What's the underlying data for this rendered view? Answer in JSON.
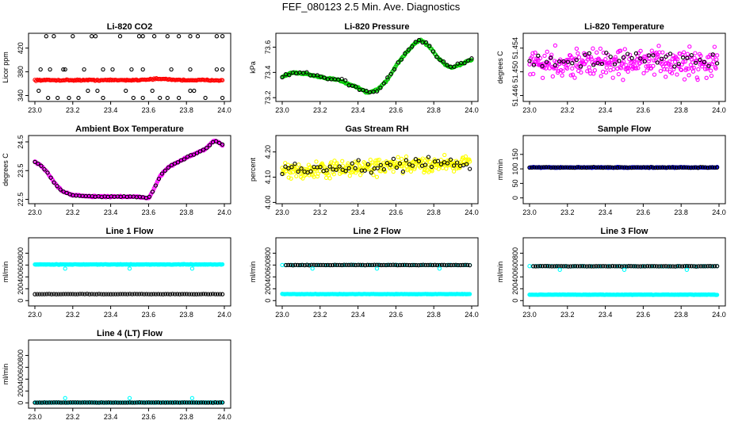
{
  "page_title": "FEF_080123  2.5 Min. Ave. Diagnostics",
  "colors": {
    "black": "#000000",
    "red": "#ff0000",
    "green": "#00cc00",
    "magenta": "#ff00ff",
    "yellow": "#ffff00",
    "blue": "#0000ff",
    "cyan": "#00ffff"
  },
  "chart_data": [
    {
      "id": "co2",
      "type": "scatter",
      "title": "Li-820 CO2",
      "ylabel": "Licor ppm",
      "xlim": [
        23.0,
        24.0
      ],
      "ylim": [
        330,
        445
      ],
      "xticks": [
        "23.0",
        "23.2",
        "23.4",
        "23.6",
        "23.8",
        "24.0"
      ],
      "yticks": [
        {
          "v": 340,
          "t": "340"
        },
        {
          "v": 380,
          "t": "380"
        },
        {
          "v": 420,
          "t": "420"
        }
      ],
      "series": [
        {
          "name": "co2-band",
          "color": "red",
          "kind": "band",
          "level": 366,
          "noise": 1.5,
          "n": 160,
          "x_from": 23.0,
          "x_to": 23.99,
          "bump_at": 23.65,
          "bump": 2
        },
        {
          "name": "co2-upper",
          "color": "black",
          "kind": "points",
          "x": [
            23.06,
            23.1,
            23.2,
            23.3,
            23.32,
            23.45,
            23.55,
            23.57,
            23.63,
            23.7,
            23.76,
            23.82,
            23.86,
            23.96,
            23.99
          ],
          "y": [
            440,
            440,
            440,
            440,
            440,
            440,
            440,
            440,
            440,
            440,
            440,
            440,
            440,
            440,
            440
          ]
        },
        {
          "name": "co2-mid",
          "color": "black",
          "kind": "points",
          "x": [
            23.03,
            23.08,
            23.15,
            23.16,
            23.26,
            23.36,
            23.41,
            23.51,
            23.57,
            23.72,
            23.82,
            23.96,
            23.99
          ],
          "y": [
            384,
            384,
            384,
            384,
            384,
            384,
            384,
            384,
            384,
            384,
            384,
            384,
            384
          ]
        },
        {
          "name": "co2-lower",
          "color": "black",
          "kind": "points",
          "x": [
            23.02,
            23.07,
            23.12,
            23.18,
            23.23,
            23.28,
            23.33,
            23.36,
            23.48,
            23.52,
            23.57,
            23.62,
            23.66,
            23.7,
            23.76,
            23.82,
            23.84,
            23.9,
            23.99
          ],
          "y": [
            348,
            336,
            336,
            336,
            336,
            348,
            348,
            336,
            348,
            336,
            336,
            348,
            336,
            336,
            336,
            348,
            348,
            336,
            336
          ]
        }
      ]
    },
    {
      "id": "pressure",
      "type": "scatter",
      "title": "Li-820 Pressure",
      "ylabel": "kPa",
      "xlim": [
        23.0,
        24.0
      ],
      "ylim": [
        73.17,
        73.71
      ],
      "xticks": [
        "23.0",
        "23.2",
        "23.4",
        "23.6",
        "23.8",
        "24.0"
      ],
      "yticks": [
        {
          "v": 73.2,
          "t": "73.2"
        },
        {
          "v": 73.4,
          "t": "73.4"
        },
        {
          "v": 73.6,
          "t": "73.6"
        }
      ],
      "series": [
        {
          "name": "pressure-trace",
          "color": "green",
          "kind": "curve",
          "noise": 0.01,
          "n": 180,
          "x_from": 23.0,
          "x_to": 24.0,
          "curve_x": [
            23.0,
            23.05,
            23.12,
            23.2,
            23.3,
            23.4,
            23.45,
            23.5,
            23.55,
            23.6,
            23.65,
            23.7,
            23.73,
            23.78,
            23.82,
            23.87,
            23.9,
            23.95,
            24.0
          ],
          "curve_y": [
            73.36,
            73.4,
            73.39,
            73.36,
            73.34,
            73.28,
            73.24,
            73.26,
            73.33,
            73.45,
            73.55,
            73.63,
            73.66,
            73.6,
            73.52,
            73.45,
            73.44,
            73.47,
            73.5
          ]
        },
        {
          "name": "pressure-avg",
          "color": "black",
          "kind": "curve",
          "noise": 0.02,
          "n": 55,
          "x_from": 23.0,
          "x_to": 24.0,
          "curve_x": [
            23.0,
            23.05,
            23.12,
            23.2,
            23.3,
            23.4,
            23.45,
            23.5,
            23.55,
            23.6,
            23.65,
            23.7,
            23.73,
            23.78,
            23.82,
            23.87,
            23.9,
            23.95,
            24.0
          ],
          "curve_y": [
            73.36,
            73.4,
            73.39,
            73.36,
            73.34,
            73.28,
            73.24,
            73.26,
            73.33,
            73.45,
            73.55,
            73.63,
            73.66,
            73.6,
            73.52,
            73.45,
            73.44,
            73.47,
            73.5
          ]
        }
      ]
    },
    {
      "id": "licor-temp",
      "type": "scatter",
      "title": "Li-820 Temperature",
      "ylabel": "degrees C",
      "xlim": [
        23.0,
        24.0
      ],
      "ylim": [
        51.445,
        51.4565
      ],
      "xticks": [
        "23.0",
        "23.2",
        "23.4",
        "23.6",
        "23.8",
        "24.0"
      ],
      "yticks": [
        {
          "v": 51.446,
          "t": "51.446"
        },
        {
          "v": 51.45,
          "t": "51.450"
        },
        {
          "v": 51.454,
          "t": "51.454"
        }
      ],
      "series": [
        {
          "name": "licor-temp-fast",
          "color": "magenta",
          "kind": "band",
          "level": 51.4515,
          "noise": 0.0035,
          "n": 300,
          "x_from": 23.0,
          "x_to": 23.99
        },
        {
          "name": "licor-temp-avg",
          "color": "black",
          "kind": "band",
          "level": 51.452,
          "noise": 0.002,
          "n": 45,
          "x_from": 23.0,
          "x_to": 23.99
        }
      ]
    },
    {
      "id": "box-temp",
      "type": "scatter",
      "title": "Ambient Box Temperature",
      "ylabel": "degrees C",
      "xlim": [
        23.0,
        24.0
      ],
      "ylim": [
        22.35,
        24.72
      ],
      "xticks": [
        "23.0",
        "23.2",
        "23.4",
        "23.6",
        "23.8",
        "24.0"
      ],
      "yticks": [
        {
          "v": 22.5,
          "t": "22.5"
        },
        {
          "v": 23.5,
          "t": "23.5"
        },
        {
          "v": 24.5,
          "t": "24.5"
        }
      ],
      "series": [
        {
          "name": "box-temp-fast",
          "color": "magenta",
          "kind": "curve",
          "noise": 0.04,
          "n": 220,
          "x_from": 23.0,
          "x_to": 23.99,
          "curve_x": [
            23.0,
            23.03,
            23.07,
            23.1,
            23.14,
            23.2,
            23.3,
            23.45,
            23.55,
            23.6,
            23.62,
            23.66,
            23.7,
            23.8,
            23.9,
            23.95,
            23.99
          ],
          "curve_y": [
            23.8,
            23.7,
            23.4,
            23.1,
            22.8,
            22.65,
            22.6,
            22.6,
            22.58,
            22.55,
            22.75,
            23.3,
            23.6,
            23.95,
            24.25,
            24.55,
            24.4
          ]
        },
        {
          "name": "box-temp-avg",
          "color": "black",
          "kind": "curve",
          "noise": 0.03,
          "n": 60,
          "x_from": 23.0,
          "x_to": 23.99,
          "curve_x": [
            23.0,
            23.03,
            23.07,
            23.1,
            23.14,
            23.2,
            23.3,
            23.45,
            23.55,
            23.6,
            23.62,
            23.66,
            23.7,
            23.8,
            23.9,
            23.95,
            23.99
          ],
          "curve_y": [
            23.8,
            23.7,
            23.4,
            23.1,
            22.8,
            22.65,
            22.6,
            22.6,
            22.58,
            22.55,
            22.75,
            23.3,
            23.6,
            23.95,
            24.25,
            24.55,
            24.4
          ]
        }
      ]
    },
    {
      "id": "rh",
      "type": "scatter",
      "title": "Gas Stream RH",
      "ylabel": "percent",
      "xlim": [
        23.0,
        24.0
      ],
      "ylim": [
        3.995,
        4.265
      ],
      "xticks": [
        "23.0",
        "23.2",
        "23.4",
        "23.6",
        "23.8",
        "24.0"
      ],
      "yticks": [
        {
          "v": 4.0,
          "t": "4.00"
        },
        {
          "v": 4.1,
          "t": "4.10"
        },
        {
          "v": 4.2,
          "t": "4.20"
        }
      ],
      "series": [
        {
          "name": "rh-fast",
          "color": "yellow",
          "kind": "band",
          "level": 4.14,
          "noise": 0.045,
          "n": 320,
          "x_from": 23.0,
          "x_to": 23.99,
          "trend": 0.04
        },
        {
          "name": "rh-avg",
          "color": "black",
          "kind": "band",
          "level": 4.145,
          "noise": 0.035,
          "n": 60,
          "x_from": 23.0,
          "x_to": 23.99,
          "trend": 0.03
        }
      ]
    },
    {
      "id": "sample-flow",
      "type": "scatter",
      "title": "Sample Flow",
      "ylabel": "ml/min",
      "xlim": [
        23.0,
        24.0
      ],
      "ylim": [
        -20,
        215
      ],
      "xticks": [
        "23.0",
        "23.2",
        "23.4",
        "23.6",
        "23.8",
        "24.0"
      ],
      "yticks": [
        {
          "v": 0,
          "t": "0"
        },
        {
          "v": 50,
          "t": "50"
        },
        {
          "v": 100,
          "t": "100"
        },
        {
          "v": 150,
          "t": "150"
        }
      ],
      "series": [
        {
          "name": "sample-flow-fast",
          "color": "blue",
          "kind": "band",
          "level": 105,
          "noise": 2,
          "n": 200,
          "x_from": 23.0,
          "x_to": 23.99
        },
        {
          "name": "sample-flow-avg",
          "color": "black",
          "kind": "band",
          "level": 105,
          "noise": 2,
          "n": 80,
          "x_from": 23.0,
          "x_to": 23.99
        }
      ]
    },
    {
      "id": "line1",
      "type": "scatter",
      "title": "Line 1 Flow",
      "ylabel": "ml/min",
      "xlim": [
        23.0,
        24.0
      ],
      "ylim": [
        -90,
        1060
      ],
      "xticks": [
        "23.0",
        "23.2",
        "23.4",
        "23.6",
        "23.8",
        "24.0"
      ],
      "yticks": [
        {
          "v": 0,
          "t": "0"
        },
        {
          "v": 200,
          "t": "200"
        },
        {
          "v": 400,
          "t": "400"
        },
        {
          "v": 600,
          "t": "600"
        },
        {
          "v": 800,
          "t": "800"
        }
      ],
      "series": [
        {
          "name": "line1-cyan",
          "color": "cyan",
          "kind": "band",
          "level": 610,
          "noise": 6,
          "n": 220,
          "x_from": 23.0,
          "x_to": 23.99
        },
        {
          "name": "line1-black",
          "color": "black",
          "kind": "band",
          "level": 110,
          "noise": 4,
          "n": 80,
          "x_from": 23.0,
          "x_to": 23.99
        },
        {
          "name": "line1-cyan-dips",
          "color": "cyan",
          "kind": "points",
          "x": [
            23.16,
            23.5,
            23.83
          ],
          "y": [
            540,
            540,
            540
          ]
        }
      ]
    },
    {
      "id": "line2",
      "type": "scatter",
      "title": "Line 2 Flow",
      "ylabel": "ml/min",
      "xlim": [
        23.0,
        24.0
      ],
      "ylim": [
        -90,
        1060
      ],
      "xticks": [
        "23.0",
        "23.2",
        "23.4",
        "23.6",
        "23.8",
        "24.0"
      ],
      "yticks": [
        {
          "v": 0,
          "t": "0"
        },
        {
          "v": 200,
          "t": "200"
        },
        {
          "v": 400,
          "t": "400"
        },
        {
          "v": 600,
          "t": "600"
        },
        {
          "v": 800,
          "t": "800"
        }
      ],
      "series": [
        {
          "name": "line2-cyan-low",
          "color": "cyan",
          "kind": "band",
          "level": 110,
          "noise": 4,
          "n": 220,
          "x_from": 23.0,
          "x_to": 23.99
        },
        {
          "name": "line2-cyan-high",
          "color": "cyan",
          "kind": "band",
          "level": 600,
          "noise": 5,
          "n": 60,
          "x_from": 23.0,
          "x_to": 23.99
        },
        {
          "name": "line2-black",
          "color": "black",
          "kind": "band",
          "level": 600,
          "noise": 4,
          "n": 80,
          "x_from": 23.02,
          "x_to": 23.99
        },
        {
          "name": "line2-cyan-dips",
          "color": "cyan",
          "kind": "points",
          "x": [
            23.16,
            23.5,
            23.83
          ],
          "y": [
            540,
            540,
            540
          ]
        }
      ]
    },
    {
      "id": "line3",
      "type": "scatter",
      "title": "Line 3 Flow",
      "ylabel": "ml/min",
      "xlim": [
        23.0,
        24.0
      ],
      "ylim": [
        -90,
        1060
      ],
      "xticks": [
        "23.0",
        "23.2",
        "23.4",
        "23.6",
        "23.8",
        "24.0"
      ],
      "yticks": [
        {
          "v": 0,
          "t": "0"
        },
        {
          "v": 200,
          "t": "200"
        },
        {
          "v": 400,
          "t": "400"
        },
        {
          "v": 600,
          "t": "600"
        },
        {
          "v": 800,
          "t": "800"
        }
      ],
      "series": [
        {
          "name": "line3-cyan-low",
          "color": "cyan",
          "kind": "band",
          "level": 100,
          "noise": 5,
          "n": 220,
          "x_from": 23.0,
          "x_to": 23.99
        },
        {
          "name": "line3-cyan-high",
          "color": "cyan",
          "kind": "band",
          "level": 580,
          "noise": 5,
          "n": 60,
          "x_from": 23.0,
          "x_to": 23.99
        },
        {
          "name": "line3-black",
          "color": "black",
          "kind": "band",
          "level": 580,
          "noise": 4,
          "n": 80,
          "x_from": 23.02,
          "x_to": 23.99
        },
        {
          "name": "line3-cyan-dips",
          "color": "cyan",
          "kind": "points",
          "x": [
            23.16,
            23.5,
            23.83
          ],
          "y": [
            520,
            520,
            520
          ]
        }
      ]
    },
    {
      "id": "line4",
      "type": "scatter",
      "title": "Line 4 (LT) Flow",
      "ylabel": "ml/min",
      "xlim": [
        23.0,
        24.0
      ],
      "ylim": [
        -90,
        1060
      ],
      "xticks": [
        "23.0",
        "23.2",
        "23.4",
        "23.6",
        "23.8",
        "24.0"
      ],
      "yticks": [
        {
          "v": 0,
          "t": "0"
        },
        {
          "v": 200,
          "t": "200"
        },
        {
          "v": 400,
          "t": "400"
        },
        {
          "v": 600,
          "t": "600"
        },
        {
          "v": 800,
          "t": "800"
        }
      ],
      "series": [
        {
          "name": "line4-cyan",
          "color": "cyan",
          "kind": "band",
          "level": 5,
          "noise": 3,
          "n": 220,
          "x_from": 23.0,
          "x_to": 23.99
        },
        {
          "name": "line4-black",
          "color": "black",
          "kind": "band",
          "level": 5,
          "noise": 3,
          "n": 80,
          "x_from": 23.0,
          "x_to": 23.99
        },
        {
          "name": "line4-cyan-spikes",
          "color": "cyan",
          "kind": "points",
          "x": [
            23.16,
            23.5,
            23.83
          ],
          "y": [
            80,
            80,
            80
          ]
        }
      ]
    }
  ]
}
